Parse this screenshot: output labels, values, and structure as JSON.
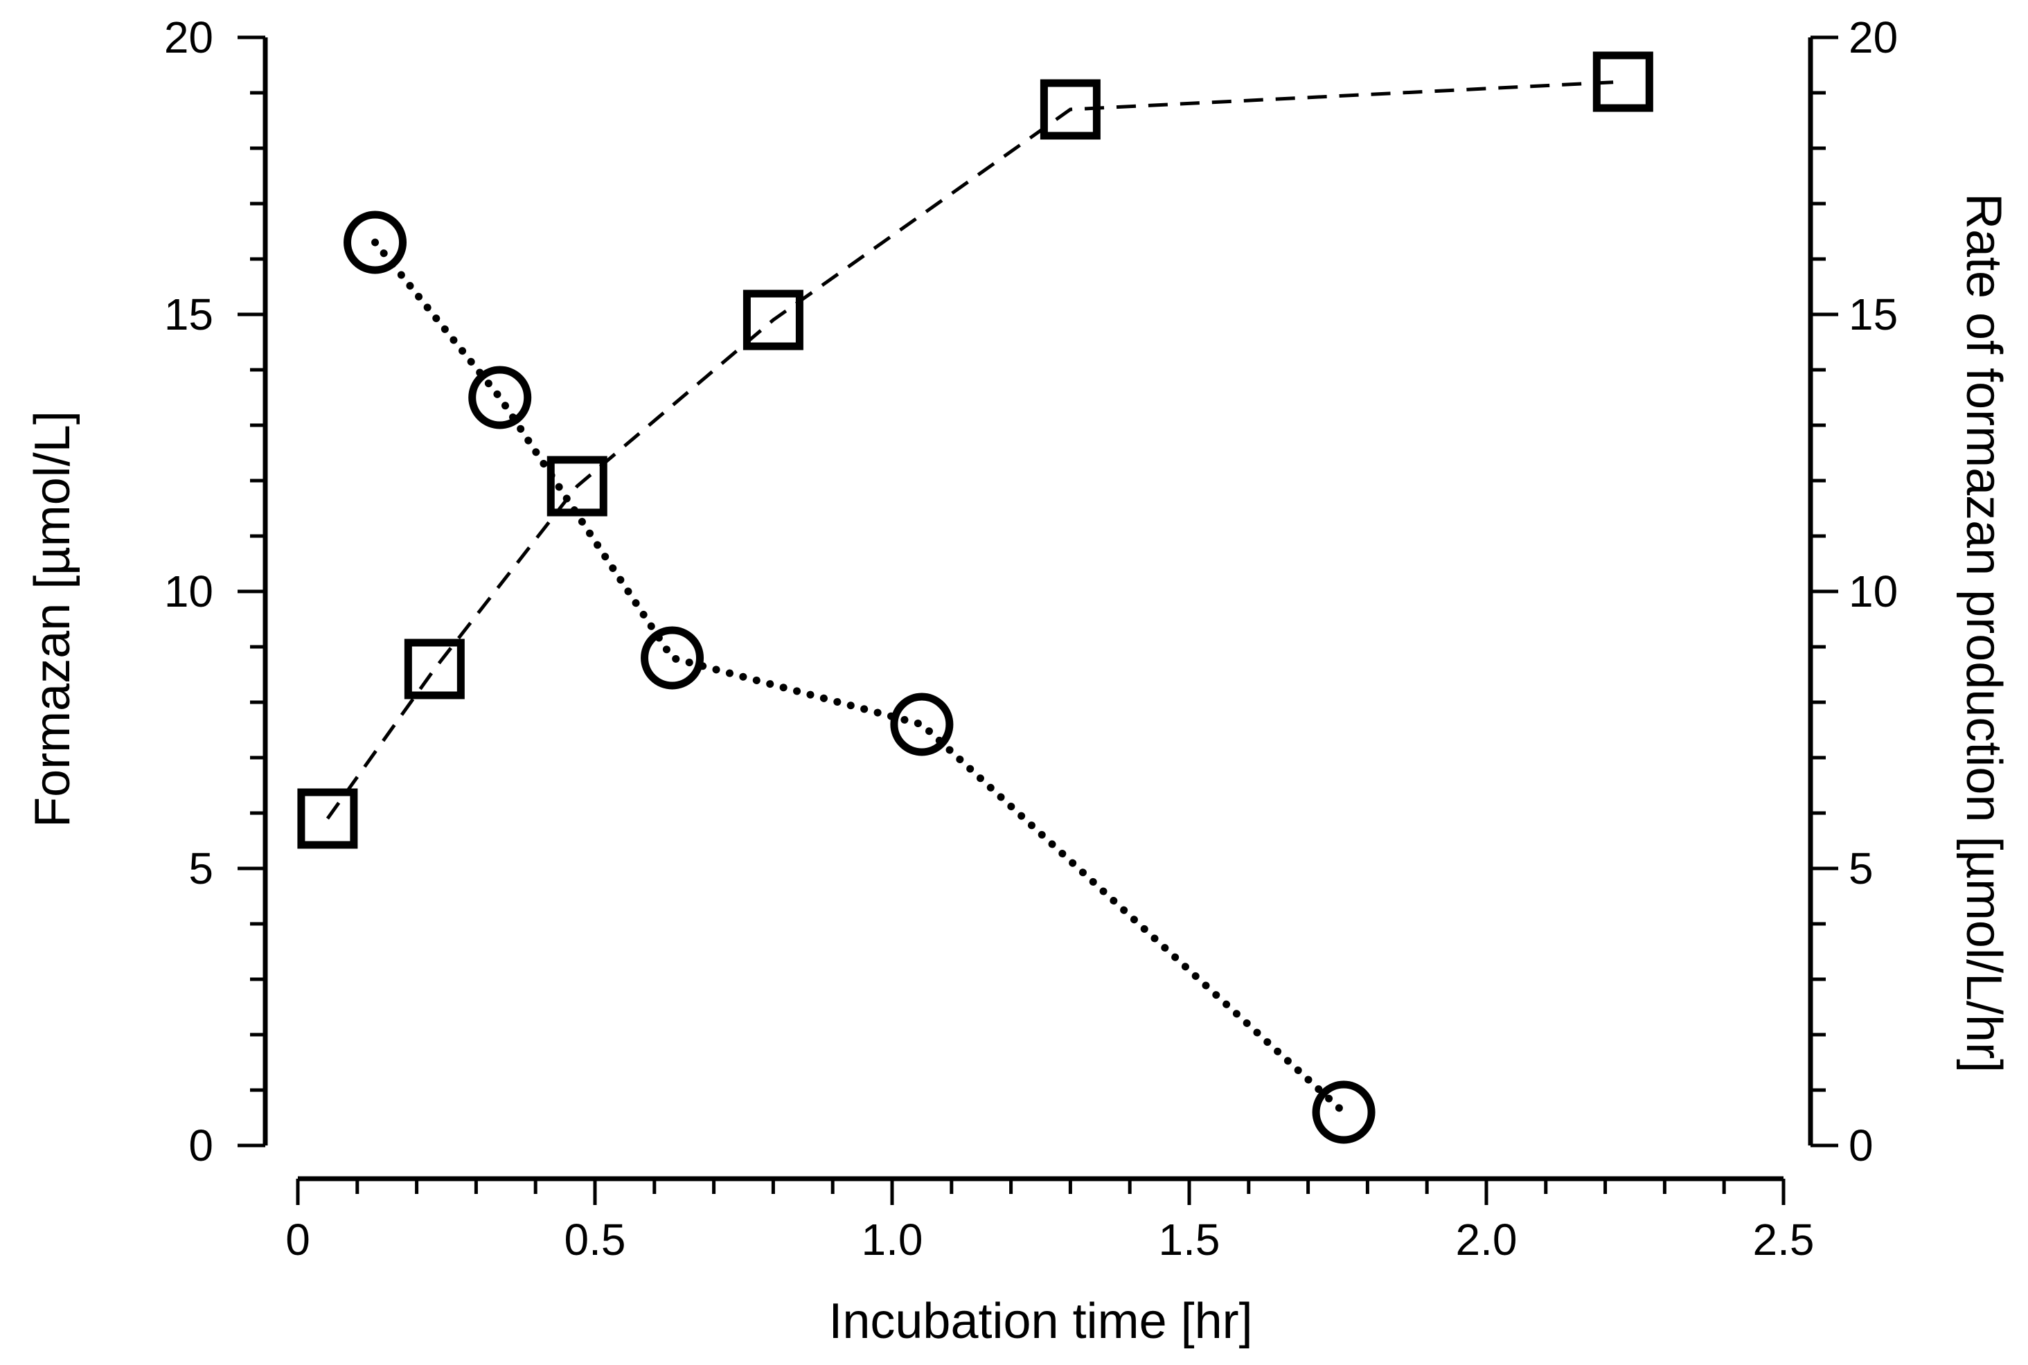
{
  "chart_data": {
    "type": "scatter",
    "title": "",
    "xlabel": "Incubation time [hr]",
    "ylabel_left": "Formazan [µmol/L]",
    "ylabel_right": "Rate of formazan production [µmol/L/hr]",
    "xlim": [
      0,
      2.5
    ],
    "ylim_left": [
      0,
      20
    ],
    "ylim_right": [
      0,
      20
    ],
    "xticks": [
      "0",
      "0.5",
      "1.0",
      "1.5",
      "2.0",
      "2.5"
    ],
    "yticks_left": [
      "0",
      "5",
      "10",
      "15",
      "20"
    ],
    "yticks_right": [
      "0",
      "5",
      "10",
      "15",
      "20"
    ],
    "grid": false,
    "series": [
      {
        "name": "Formazan",
        "axis": "left",
        "marker": "square",
        "line": "dashed",
        "x": [
          0.05,
          0.23,
          0.47,
          0.8,
          1.3,
          2.23
        ],
        "y": [
          5.9,
          8.6,
          11.9,
          14.9,
          18.7,
          19.2
        ]
      },
      {
        "name": "Rate of formazan production",
        "axis": "right",
        "marker": "circle",
        "line": "dotted",
        "x": [
          0.13,
          0.34,
          0.63,
          1.05,
          1.76
        ],
        "y": [
          16.3,
          13.5,
          8.8,
          7.6,
          0.6
        ]
      }
    ]
  }
}
